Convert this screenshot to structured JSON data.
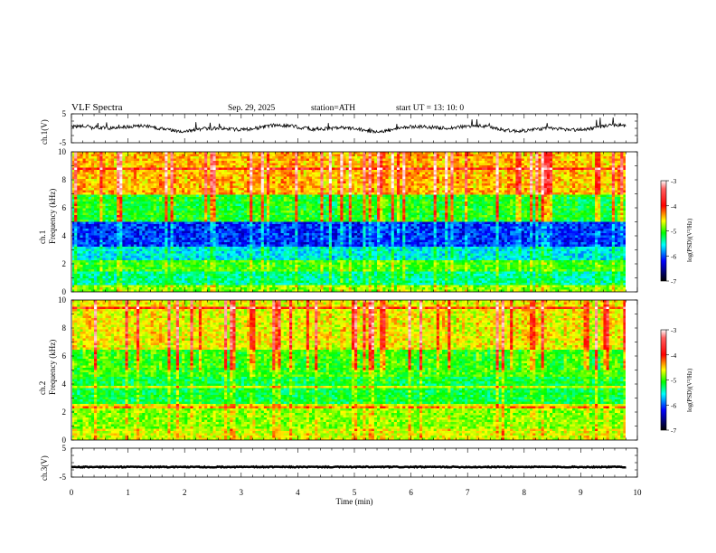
{
  "header": {
    "title": "VLF  Spectra",
    "date": "Sep. 29, 2025",
    "station": "station=ATH",
    "start": "start  UT  =   13: 10: 0"
  },
  "colorbar": {
    "label": "log(PSD)(V²/Hz)",
    "ticks": [
      "-3",
      "-4",
      "-5",
      "-6",
      "-7"
    ],
    "colors": [
      "#ffffff",
      "#ff0000",
      "#ffff00",
      "#00ff00",
      "#00ffff",
      "#0000ff",
      "#000000"
    ]
  },
  "chart_data": [
    {
      "type": "line",
      "name": "ch1-waveform",
      "ylabel": "ch.1(V)",
      "ylim": [
        -5,
        5
      ],
      "yticks": [
        "5",
        "-5"
      ],
      "xlim": [
        0,
        10
      ],
      "baseline_approx": 0,
      "peak_to_peak_approx": [
        -1.5,
        2.5
      ]
    },
    {
      "type": "heatmap",
      "name": "ch1-spectrogram",
      "ylabel": "ch.1\nFrequency  (kHz)",
      "ylim": [
        0,
        10
      ],
      "yticks": [
        "0",
        "2",
        "4",
        "6",
        "8",
        "10"
      ],
      "xlim": [
        0,
        10
      ],
      "data_extent_min": 9.8,
      "color_scale": [
        -7,
        -3
      ],
      "bands_kHz": [
        {
          "from": 0.0,
          "to": 0.5,
          "psd": -5.0
        },
        {
          "from": 0.5,
          "to": 1.5,
          "psd": -5.6
        },
        {
          "from": 1.5,
          "to": 2.3,
          "psd": -5.2
        },
        {
          "from": 2.3,
          "to": 3.3,
          "psd": -5.8
        },
        {
          "from": 3.3,
          "to": 5.0,
          "psd": -6.3
        },
        {
          "from": 5.0,
          "to": 7.0,
          "psd": -5.3
        },
        {
          "from": 7.0,
          "to": 10.0,
          "psd": -4.5
        }
      ]
    },
    {
      "type": "heatmap",
      "name": "ch2-spectrogram",
      "ylabel": "ch.2\nFrequency  (kHz)",
      "ylim": [
        0,
        10
      ],
      "yticks": [
        "0",
        "2",
        "4",
        "6",
        "8",
        "10"
      ],
      "xlim": [
        0,
        10
      ],
      "data_extent_min": 9.8,
      "color_scale": [
        -7,
        -3
      ],
      "bands_kHz": [
        {
          "from": 0.0,
          "to": 0.8,
          "psd": -4.8
        },
        {
          "from": 0.8,
          "to": 2.5,
          "psd": -5.0
        },
        {
          "from": 2.5,
          "to": 4.5,
          "psd": -5.4
        },
        {
          "from": 4.5,
          "to": 6.5,
          "psd": -5.2
        },
        {
          "from": 6.5,
          "to": 10.0,
          "psd": -4.7
        }
      ]
    },
    {
      "type": "line",
      "name": "ch3-waveform",
      "ylabel": "ch.3(V)",
      "xlabel": "Time  (min)",
      "ylim": [
        -5,
        5
      ],
      "yticks": [
        "5",
        "-5"
      ],
      "xlim": [
        0,
        10
      ],
      "xticks": [
        "0",
        "1",
        "2",
        "3",
        "4",
        "5",
        "6",
        "7",
        "8",
        "9",
        "10"
      ],
      "baseline_approx": -1.5
    }
  ]
}
